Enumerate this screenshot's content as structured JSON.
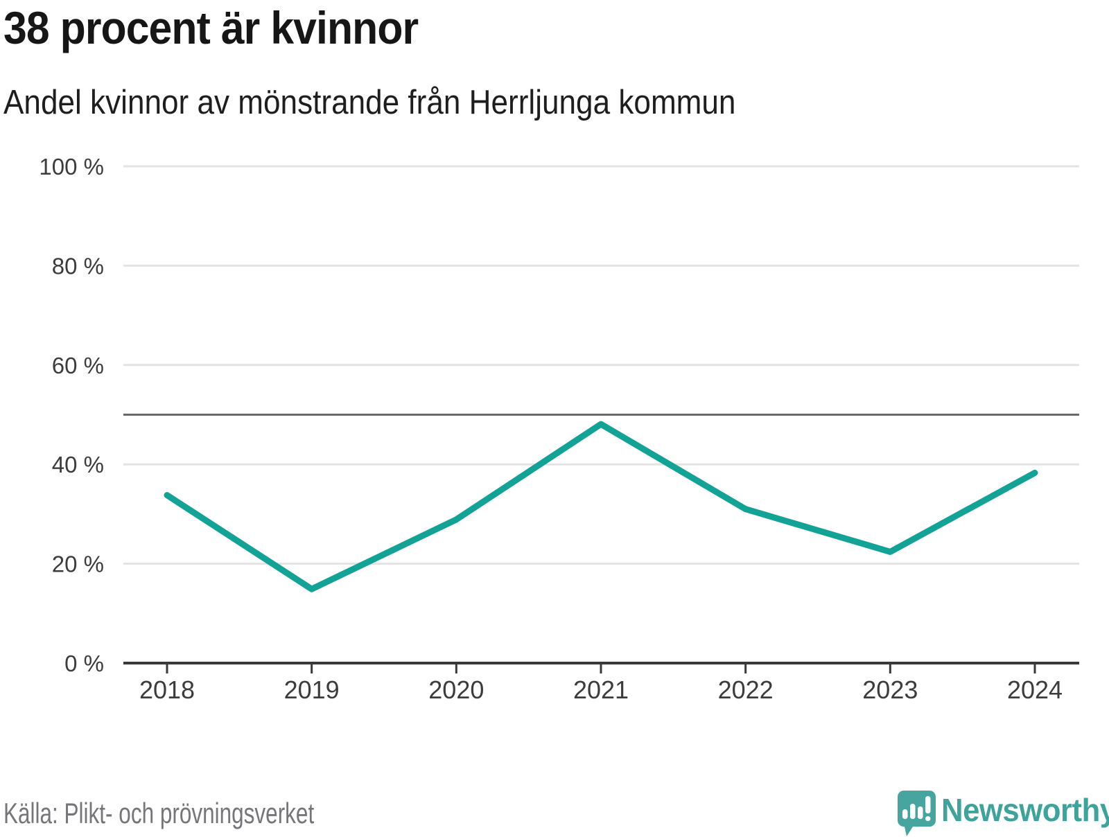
{
  "header": {
    "title": "38 procent är kvinnor",
    "subtitle": "Andel kvinnor av mönstrande från Herrljunga kommun"
  },
  "footer": {
    "source": "Källa: Plikt- och prövningsverket",
    "brand": "Newsworthy"
  },
  "colors": {
    "line": "#12A296",
    "grid": "#E3E3E3",
    "reference_line": "#696969",
    "axis": "#3A3A3A",
    "tick_text": "#3C3C3C",
    "source_text": "#75757A",
    "logo_bubble": "#46A59E",
    "logo_text": "#3EA39B",
    "background": "#FFFFFF"
  },
  "chart_data": {
    "type": "line",
    "title": "38 procent är kvinnor",
    "subtitle": "Andel kvinnor av mönstrande från Herrljunga kommun",
    "x": [
      "2018",
      "2019",
      "2020",
      "2021",
      "2022",
      "2023",
      "2024"
    ],
    "series": [
      {
        "name": "Andel kvinnor av mönstrande",
        "color": "#12A296",
        "values": [
          33.8,
          14.9,
          28.9,
          48.1,
          31.0,
          22.4,
          38.3
        ]
      }
    ],
    "xlabel": "",
    "ylabel": "",
    "ylim": [
      0,
      100
    ],
    "yticks": [
      0,
      20,
      40,
      60,
      80,
      100
    ],
    "ytick_suffix": " %",
    "reference_line": 50,
    "grid": "horizontal-light",
    "legend": "none",
    "source": "Källa: Plikt- och prövningsverket"
  }
}
